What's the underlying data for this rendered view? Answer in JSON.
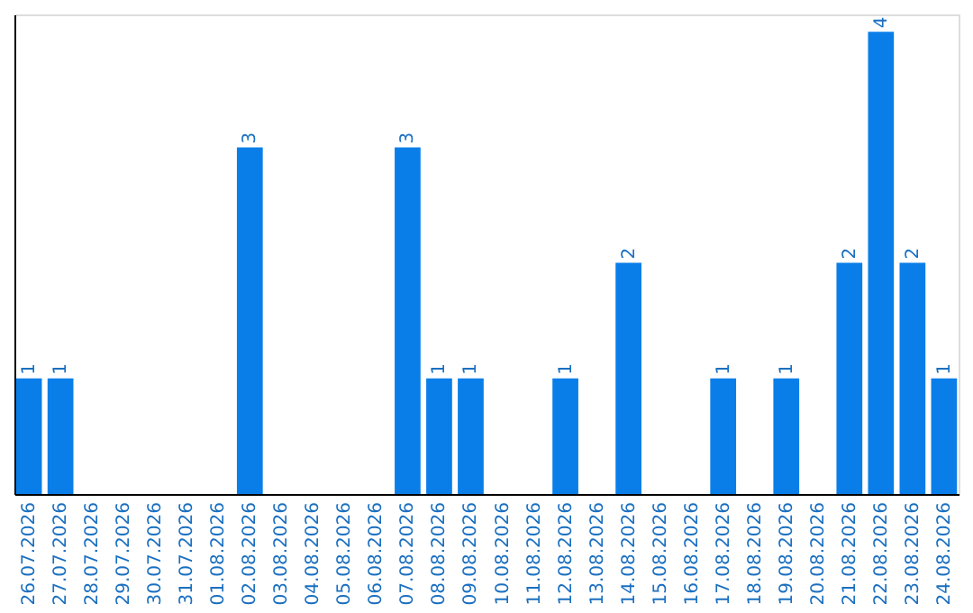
{
  "chart_data": {
    "type": "bar",
    "categories": [
      "26.07.2026",
      "27.07.2026",
      "28.07.2026",
      "29.07.2026",
      "30.07.2026",
      "31.07.2026",
      "01.08.2026",
      "02.08.2026",
      "03.08.2026",
      "04.08.2026",
      "05.08.2026",
      "06.08.2026",
      "07.08.2026",
      "08.08.2026",
      "09.08.2026",
      "10.08.2026",
      "11.08.2026",
      "12.08.2026",
      "13.08.2026",
      "14.08.2026",
      "15.08.2026",
      "16.08.2026",
      "17.08.2026",
      "18.08.2026",
      "19.08.2026",
      "20.08.2026",
      "21.08.2026",
      "22.08.2026",
      "23.08.2026",
      "24.08.2026"
    ],
    "values": [
      1,
      1,
      0,
      0,
      0,
      0,
      0,
      3,
      0,
      0,
      0,
      0,
      3,
      1,
      1,
      0,
      0,
      1,
      0,
      2,
      0,
      0,
      1,
      0,
      1,
      0,
      2,
      4,
      2,
      1
    ],
    "value_labels": [
      "1",
      "1",
      null,
      null,
      null,
      null,
      null,
      "3",
      null,
      null,
      null,
      null,
      "3",
      "1",
      "1",
      null,
      null,
      "1",
      null,
      "2",
      null,
      null,
      "1",
      null,
      "1",
      null,
      "2",
      "4",
      "2",
      "1"
    ],
    "color": "#0a7ee8",
    "ylim": [
      0,
      4.15
    ],
    "tick_labels": "x",
    "grid": false
  }
}
